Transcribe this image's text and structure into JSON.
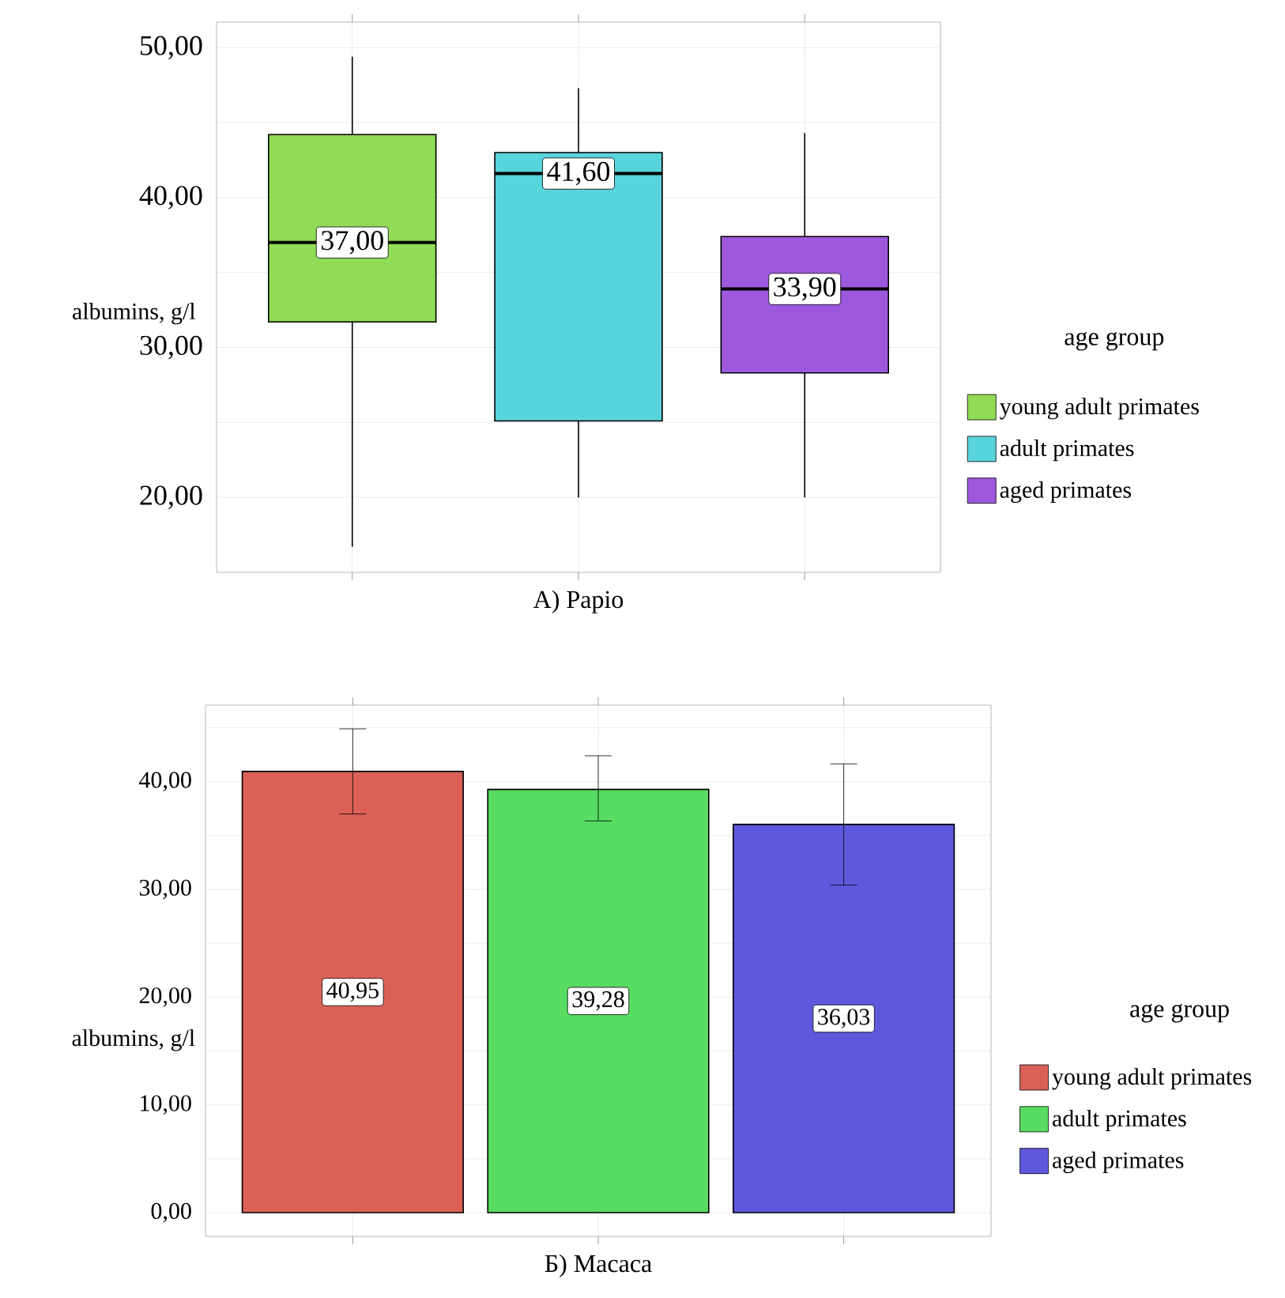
{
  "chart_data": [
    {
      "type": "box",
      "xlabel": "А) Papio",
      "ylabel": "albumins, g/l",
      "legend_title": "age group",
      "categories": [
        null,
        null,
        null
      ],
      "ylim": [
        15,
        51.7
      ],
      "yticks": [
        {
          "value": 20,
          "label": "20,00"
        },
        {
          "value": 25,
          "label": null
        },
        {
          "value": 30,
          "label": "30,00"
        },
        {
          "value": 35,
          "label": null
        },
        {
          "value": 40,
          "label": "40,00"
        },
        {
          "value": 45,
          "label": null
        },
        {
          "value": 50,
          "label": "50,00"
        }
      ],
      "grid": true,
      "legend": "right",
      "tick_labels": "y",
      "series": [
        {
          "name": "young adult primates",
          "color": "#92db56",
          "boxes": [
            {
              "low": 16.7,
              "q1": 31.7,
              "median": 37.0,
              "q3": 44.2,
              "high": 49.4
            },
            null,
            null
          ],
          "value_labels": [
            "37,00",
            null,
            null
          ]
        },
        {
          "name": "adult primates",
          "color": "#58d4dc",
          "boxes": [
            null,
            {
              "low": 20.0,
              "q1": 25.1,
              "median": 41.6,
              "q3": 43.0,
              "high": 47.3
            },
            null
          ],
          "value_labels": [
            null,
            "41,60",
            null
          ]
        },
        {
          "name": "aged primates",
          "color": "#9d58de",
          "boxes": [
            null,
            null,
            {
              "low": 20.0,
              "q1": 28.3,
              "median": 33.9,
              "q3": 37.4,
              "high": 44.3
            }
          ],
          "value_labels": [
            null,
            null,
            "33,90"
          ]
        }
      ]
    },
    {
      "type": "bar",
      "xlabel": "Б) Macaca",
      "ylabel": "albumins, g/l",
      "legend_title": "age group",
      "categories": [
        null,
        null,
        null
      ],
      "ylim": [
        -2.2,
        47.1
      ],
      "yticks": [
        {
          "value": 0,
          "label": "0,00"
        },
        {
          "value": 5,
          "label": null
        },
        {
          "value": 10,
          "label": "10,00"
        },
        {
          "value": 15,
          "label": null
        },
        {
          "value": 20,
          "label": "20,00"
        },
        {
          "value": 25,
          "label": null
        },
        {
          "value": 30,
          "label": "30,00"
        },
        {
          "value": 35,
          "label": null
        },
        {
          "value": 40,
          "label": "40,00"
        },
        {
          "value": 45,
          "label": null
        }
      ],
      "grid": true,
      "legend": "right",
      "tick_labels": "y",
      "series": [
        {
          "name": "young adult primates",
          "color": "#db6157",
          "values": [
            40.95,
            null,
            null
          ],
          "errors": [
            [
              37.0,
              44.9
            ],
            null,
            null
          ],
          "value_labels": [
            "40,95",
            null,
            null
          ]
        },
        {
          "name": "adult primates",
          "color": "#58dc62",
          "values": [
            null,
            39.28,
            null
          ],
          "errors": [
            null,
            [
              36.35,
              42.4
            ],
            null
          ],
          "value_labels": [
            null,
            "39,28",
            null
          ]
        },
        {
          "name": "aged primates",
          "color": "#5e58dc",
          "values": [
            null,
            null,
            36.03
          ],
          "errors": [
            null,
            null,
            [
              30.4,
              41.65
            ]
          ],
          "value_labels": [
            null,
            null,
            "36,03"
          ]
        }
      ]
    }
  ]
}
